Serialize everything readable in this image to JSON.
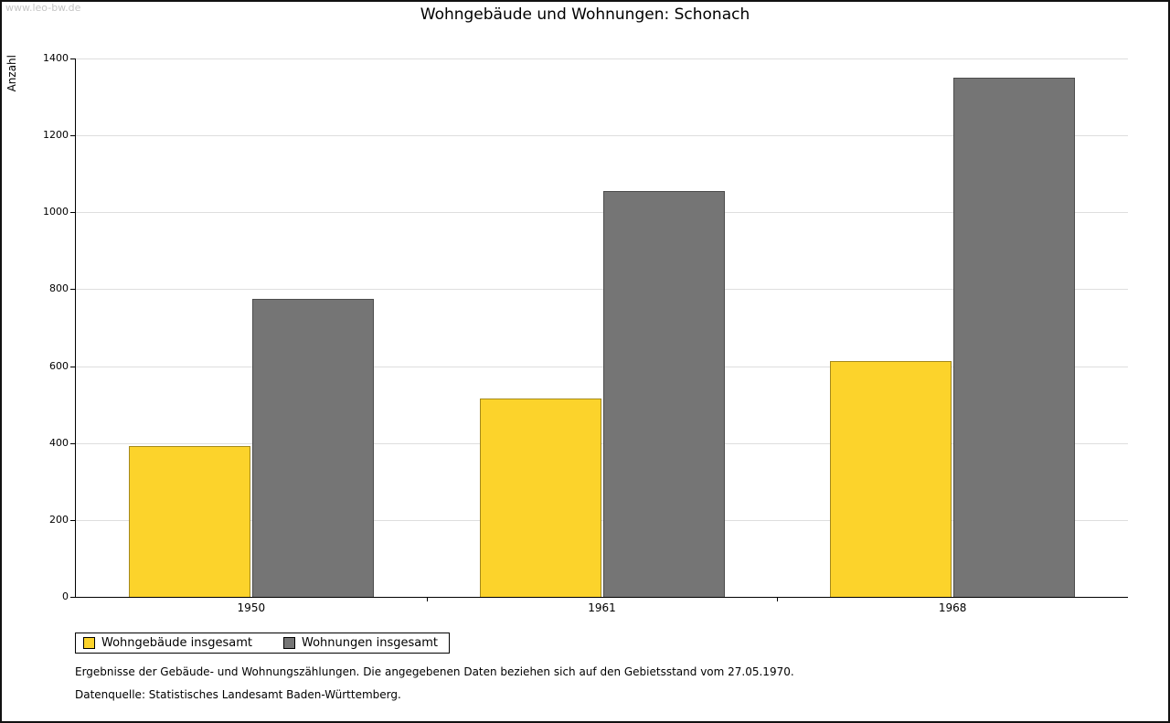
{
  "watermark": "www.leo-bw.de",
  "chart_data": {
    "type": "bar",
    "title": "Wohngebäude und Wohnungen: Schonach",
    "ylabel": "Anzahl",
    "xlabel": "",
    "categories": [
      "1950",
      "1961",
      "1968"
    ],
    "series": [
      {
        "name": "Wohngebäude insgesamt",
        "color": "#fcd32b",
        "values": [
          392,
          517,
          613
        ]
      },
      {
        "name": "Wohnungen insgesamt",
        "color": "#757575",
        "values": [
          775,
          1056,
          1350
        ]
      }
    ],
    "ylim": [
      0,
      1400
    ],
    "ytick_step": 200,
    "grid": true,
    "legend_position": "bottom-left"
  },
  "footer": {
    "line1": "Ergebnisse der Gebäude- und Wohnungszählungen. Die angegebenen Daten beziehen sich auf den Gebietsstand vom 27.05.1970.",
    "line2": "Datenquelle: Statistisches Landesamt Baden-Württemberg."
  }
}
